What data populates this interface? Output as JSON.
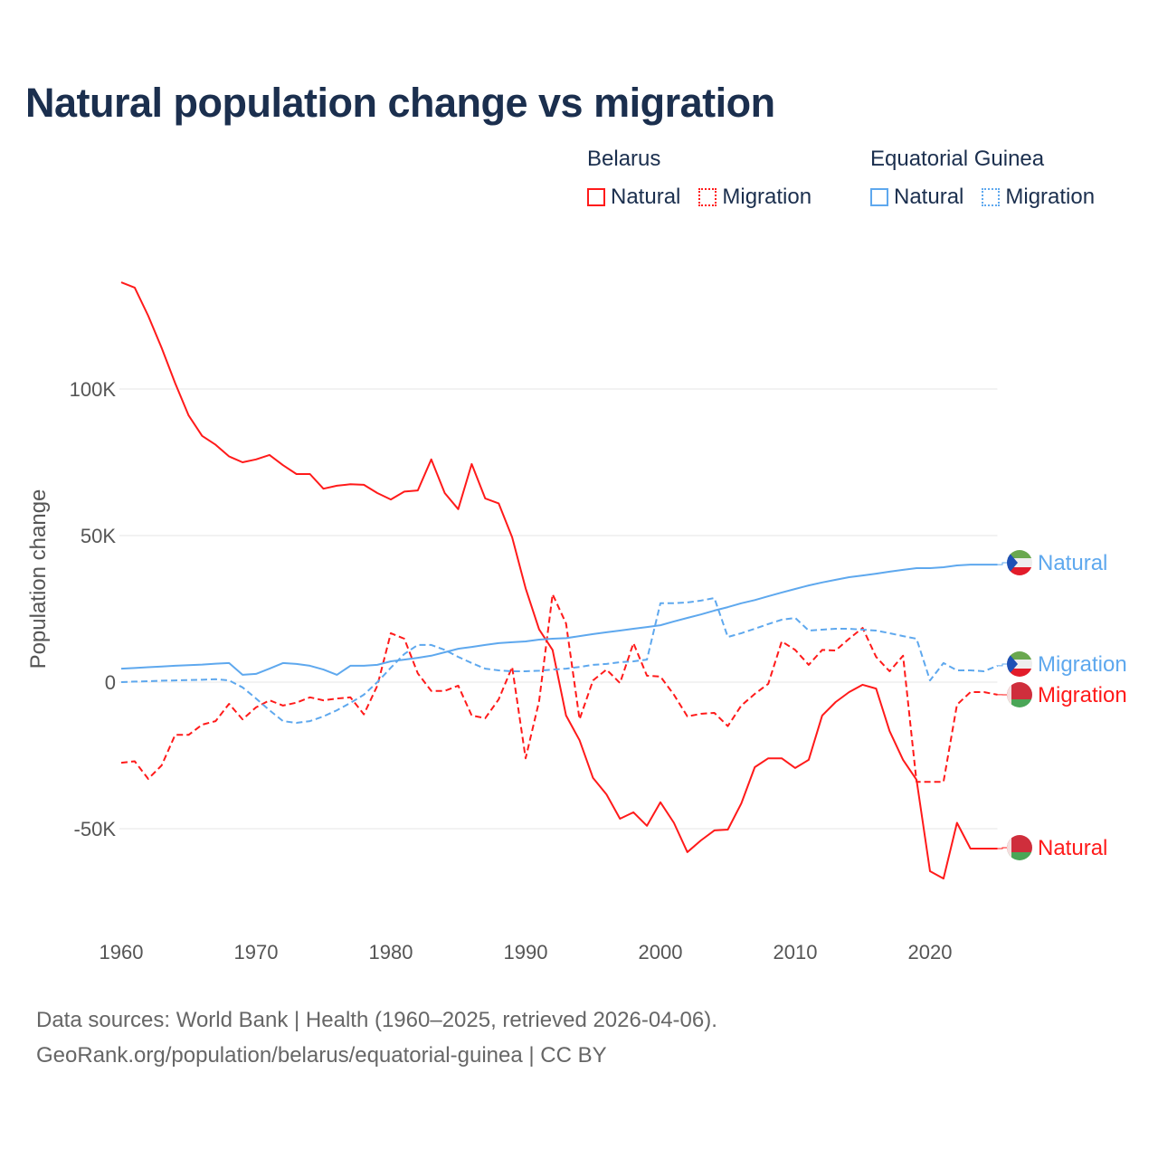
{
  "title": "Natural population change vs migration",
  "legend": {
    "groups": [
      {
        "name": "Belarus",
        "items": [
          {
            "label": "Natural",
            "style": "solid"
          },
          {
            "label": "Migration",
            "style": "dotted"
          }
        ],
        "color": "#ff1a1a"
      },
      {
        "name": "Equatorial Guinea",
        "items": [
          {
            "label": "Natural",
            "style": "solid"
          },
          {
            "label": "Migration",
            "style": "dotted"
          }
        ],
        "color": "#5ea8ee"
      }
    ]
  },
  "footer": {
    "line1": "Data sources: World Bank | Health (1960–2025, retrieved 2026-04-06).",
    "line2": "GeoRank.org/population/belarus/equatorial-guinea | CC BY"
  },
  "chart_data": {
    "type": "line",
    "title": "Natural population change vs migration",
    "xlabel": "",
    "ylabel": "Population change",
    "xlim": [
      1960,
      2025
    ],
    "ylim": [
      -80000,
      140000
    ],
    "x_ticks": [
      1960,
      1970,
      1980,
      1990,
      2000,
      2010,
      2020
    ],
    "x_tick_labels": [
      "1960",
      "1970",
      "1980",
      "1990",
      "2000",
      "2010",
      "2020"
    ],
    "y_ticks": [
      -50000,
      0,
      50000,
      100000
    ],
    "y_tick_labels": [
      "-50K",
      "0",
      "50K",
      "100K"
    ],
    "grid": true,
    "legend_position": "top-right",
    "x_start": 1960,
    "series": [
      {
        "name": "Belarus Natural",
        "end_label": "Natural",
        "color": "#ff1a1a",
        "dash": false,
        "flag": "belarus",
        "values_k": [
          136.4,
          134.6,
          125,
          114,
          102,
          91,
          84,
          81,
          77,
          75,
          76,
          77.5,
          74,
          71,
          71,
          66,
          67,
          67.5,
          67.3,
          64.5,
          62.3,
          65,
          65.4,
          76,
          64.5,
          59,
          74.4,
          62.7,
          61,
          49.4,
          32,
          18,
          11,
          -11.4,
          -19.8,
          -32.7,
          -38.3,
          -46.6,
          -44.4,
          -49,
          -41,
          -48,
          -58,
          -54,
          -50.6,
          -50.3,
          -41.4,
          -29,
          -26,
          -26,
          -29.3,
          -26.5,
          -11.4,
          -6.8,
          -3.4,
          -0.9,
          -2.2,
          -16.7,
          -26.5,
          -33.3,
          -64.5,
          -67,
          -48,
          -56.8,
          -56.8,
          -56.8
        ]
      },
      {
        "name": "Belarus Migration",
        "end_label": "Migration",
        "color": "#ff1a1a",
        "dash": true,
        "flag": "belarus",
        "values_k": [
          -27.5,
          -27,
          -33,
          -28.4,
          -18,
          -18,
          -14.5,
          -13.3,
          -7.4,
          -12.7,
          -8.6,
          -6.2,
          -8,
          -7,
          -5.2,
          -6.2,
          -5.6,
          -5.2,
          -11,
          -1.2,
          16.7,
          14.8,
          3,
          -3,
          -3,
          -1.2,
          -11.4,
          -12.3,
          -5.9,
          5.2,
          -26,
          -6.5,
          30,
          20,
          -12.7,
          0.6,
          4.3,
          -0.3,
          13.3,
          2.2,
          1.9,
          -4.3,
          -11.7,
          -10.8,
          -10.5,
          -15,
          -8,
          -4,
          -0.6,
          13.9,
          11,
          5.9,
          11,
          10.8,
          14.8,
          18.5,
          8.6,
          3.7,
          9,
          -34,
          -34,
          -34,
          -7.7,
          -3.4,
          -3.4,
          -4.3
        ]
      },
      {
        "name": "Equatorial Guinea Natural",
        "end_label": "Natural",
        "color": "#5ea8ee",
        "dash": false,
        "flag": "equatorial-guinea",
        "values_k": [
          4.6,
          4.8,
          5.1,
          5.3,
          5.6,
          5.8,
          6.0,
          6.3,
          6.5,
          2.5,
          2.8,
          4.6,
          6.5,
          6.2,
          5.6,
          4.3,
          2.5,
          5.6,
          5.6,
          5.9,
          7.1,
          7.7,
          8.3,
          9,
          10.2,
          11.4,
          12,
          12.7,
          13.3,
          13.6,
          13.9,
          14.5,
          14.8,
          15,
          15.7,
          16.4,
          17,
          17.6,
          18.2,
          18.8,
          19.4,
          20.7,
          21.9,
          23.1,
          24.4,
          25.6,
          26.9,
          28,
          29.3,
          30.6,
          31.8,
          33,
          34,
          34.9,
          35.8,
          36.4,
          37,
          37.7,
          38.3,
          38.9,
          38.9,
          39.2,
          39.8,
          40.1,
          40.1,
          40.1
        ]
      },
      {
        "name": "Equatorial Guinea Migration",
        "end_label": "Migration",
        "color": "#5ea8ee",
        "dash": true,
        "flag": "equatorial-guinea",
        "values_k": [
          0,
          0.2,
          0.3,
          0.5,
          0.6,
          0.7,
          0.8,
          1,
          0.6,
          -1.8,
          -5.6,
          -9.6,
          -13.3,
          -13.9,
          -13.3,
          -11.7,
          -9.6,
          -7.1,
          -4.3,
          0,
          4.9,
          9.6,
          12.7,
          12.7,
          11,
          8.6,
          6.5,
          4.6,
          4,
          3.7,
          3.7,
          3.9,
          4.3,
          4.6,
          5.2,
          5.9,
          6.2,
          6.8,
          7.1,
          7.7,
          26.9,
          26.9,
          27.2,
          27.8,
          28.7,
          15.4,
          16.7,
          18.2,
          19.8,
          21.3,
          21.9,
          17.6,
          17.9,
          18.2,
          18.2,
          17.9,
          17.6,
          16.7,
          15.7,
          14.8,
          0.6,
          6.5,
          4,
          4,
          3.7,
          5.6
        ]
      }
    ]
  }
}
